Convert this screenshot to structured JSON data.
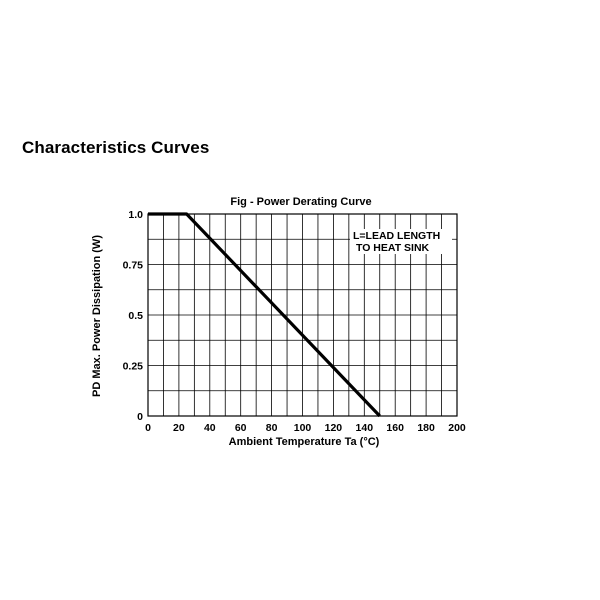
{
  "page": {
    "section_title": "Characteristics Curves"
  },
  "chart_data": {
    "type": "line",
    "title": "Fig - Power Derating Curve",
    "xlabel": "Ambient Temperature Ta (°C)",
    "ylabel": "PD Max. Power Dissipation (W)",
    "xlim": [
      0,
      200
    ],
    "ylim": [
      0,
      1.0
    ],
    "grid": true,
    "x_ticks": [
      0,
      20,
      40,
      60,
      80,
      100,
      120,
      140,
      160,
      180,
      200
    ],
    "x_tick_labels": [
      "0",
      "20",
      "40",
      "60",
      "80",
      "100",
      "120",
      "140",
      "160",
      "180",
      "200"
    ],
    "y_ticks": [
      0,
      0.25,
      0.5,
      0.75,
      1.0
    ],
    "y_tick_labels": [
      "0",
      "0.25",
      "0.5",
      "0.75",
      "1.0"
    ],
    "series": [
      {
        "name": "Power derating",
        "x": [
          0,
          25,
          150
        ],
        "y": [
          1.0,
          1.0,
          0
        ]
      }
    ],
    "annotations": [
      "L=LEAD LENGTH",
      "TO HEAT SINK"
    ]
  }
}
